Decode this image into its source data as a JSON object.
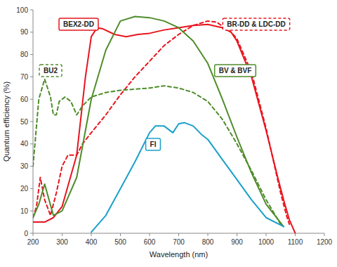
{
  "chart_data": {
    "type": "line",
    "x_label": "Wavelength (nm)",
    "y_label": "Quantum efficiency (%)",
    "xlim": [
      200,
      1200
    ],
    "xticks": [
      200,
      300,
      400,
      500,
      600,
      700,
      800,
      900,
      1000,
      1100,
      1200
    ],
    "ylim": [
      0,
      100
    ],
    "yticks": [
      0,
      10,
      20,
      30,
      40,
      50,
      60,
      70,
      80,
      90,
      100
    ],
    "grid": false,
    "series": [
      {
        "name": "BEX2-DD",
        "color": "#e8141e",
        "line_style": "solid",
        "x": [
          200,
          240,
          270,
          300,
          350,
          380,
          400,
          420,
          440,
          480,
          520,
          560,
          600,
          650,
          700,
          750,
          800,
          850,
          880,
          900,
          950,
          1000,
          1040,
          1060,
          1080,
          1100
        ],
        "values": [
          5,
          5,
          7,
          12,
          35,
          70,
          88,
          92,
          91.5,
          89,
          88,
          89,
          89.5,
          91,
          92,
          93,
          93.5,
          92,
          90,
          86,
          70,
          46,
          25,
          15,
          6,
          0
        ]
      },
      {
        "name": "BR-DD & LDC-DD",
        "color": "#e8141e",
        "line_style": "dashed",
        "x": [
          200,
          212,
          225,
          240,
          260,
          280,
          300,
          320,
          350,
          370,
          400,
          450,
          500,
          550,
          600,
          650,
          700,
          750,
          800,
          830,
          880,
          900,
          950,
          1000,
          1050,
          1070,
          1080
        ],
        "values": [
          7,
          12,
          25,
          15,
          8,
          18,
          30,
          35,
          35,
          40,
          45,
          53,
          62,
          70,
          77,
          84,
          89,
          93,
          95,
          94.5,
          90,
          87,
          72,
          47,
          18,
          8,
          4
        ]
      },
      {
        "name": "BU2",
        "color": "#4e8c2a",
        "line_style": "dashed",
        "x": [
          200,
          220,
          240,
          260,
          270,
          280,
          290,
          310,
          330,
          350,
          370,
          400,
          450,
          500,
          600,
          650,
          700,
          750,
          800,
          850,
          900,
          950,
          1000,
          1050
        ],
        "values": [
          30,
          60,
          69,
          61,
          53,
          53,
          59,
          61,
          59,
          53,
          57,
          61,
          63,
          64,
          65,
          66,
          65,
          63,
          59,
          51,
          40,
          28,
          15,
          4
        ]
      },
      {
        "name": "BV & BVF",
        "color": "#4e8c2a",
        "line_style": "solid",
        "x": [
          200,
          220,
          240,
          255,
          270,
          300,
          350,
          400,
          450,
          500,
          550,
          600,
          650,
          700,
          750,
          800,
          850,
          900,
          950,
          1000,
          1060
        ],
        "values": [
          7,
          13,
          22,
          15,
          8,
          10,
          25,
          60,
          82,
          95,
          97,
          96.5,
          95,
          92,
          86,
          76,
          60,
          43,
          27,
          13,
          3
        ]
      },
      {
        "name": "FI",
        "color": "#1aa0c8",
        "line_style": "solid",
        "x": [
          400,
          450,
          500,
          550,
          600,
          620,
          650,
          680,
          700,
          720,
          750,
          780,
          800,
          850,
          900,
          950,
          1000,
          1060
        ],
        "values": [
          0.5,
          8,
          20,
          32,
          45,
          48,
          48,
          45,
          49,
          49.5,
          48,
          44,
          42,
          33,
          24,
          15,
          7,
          3
        ]
      }
    ]
  }
}
